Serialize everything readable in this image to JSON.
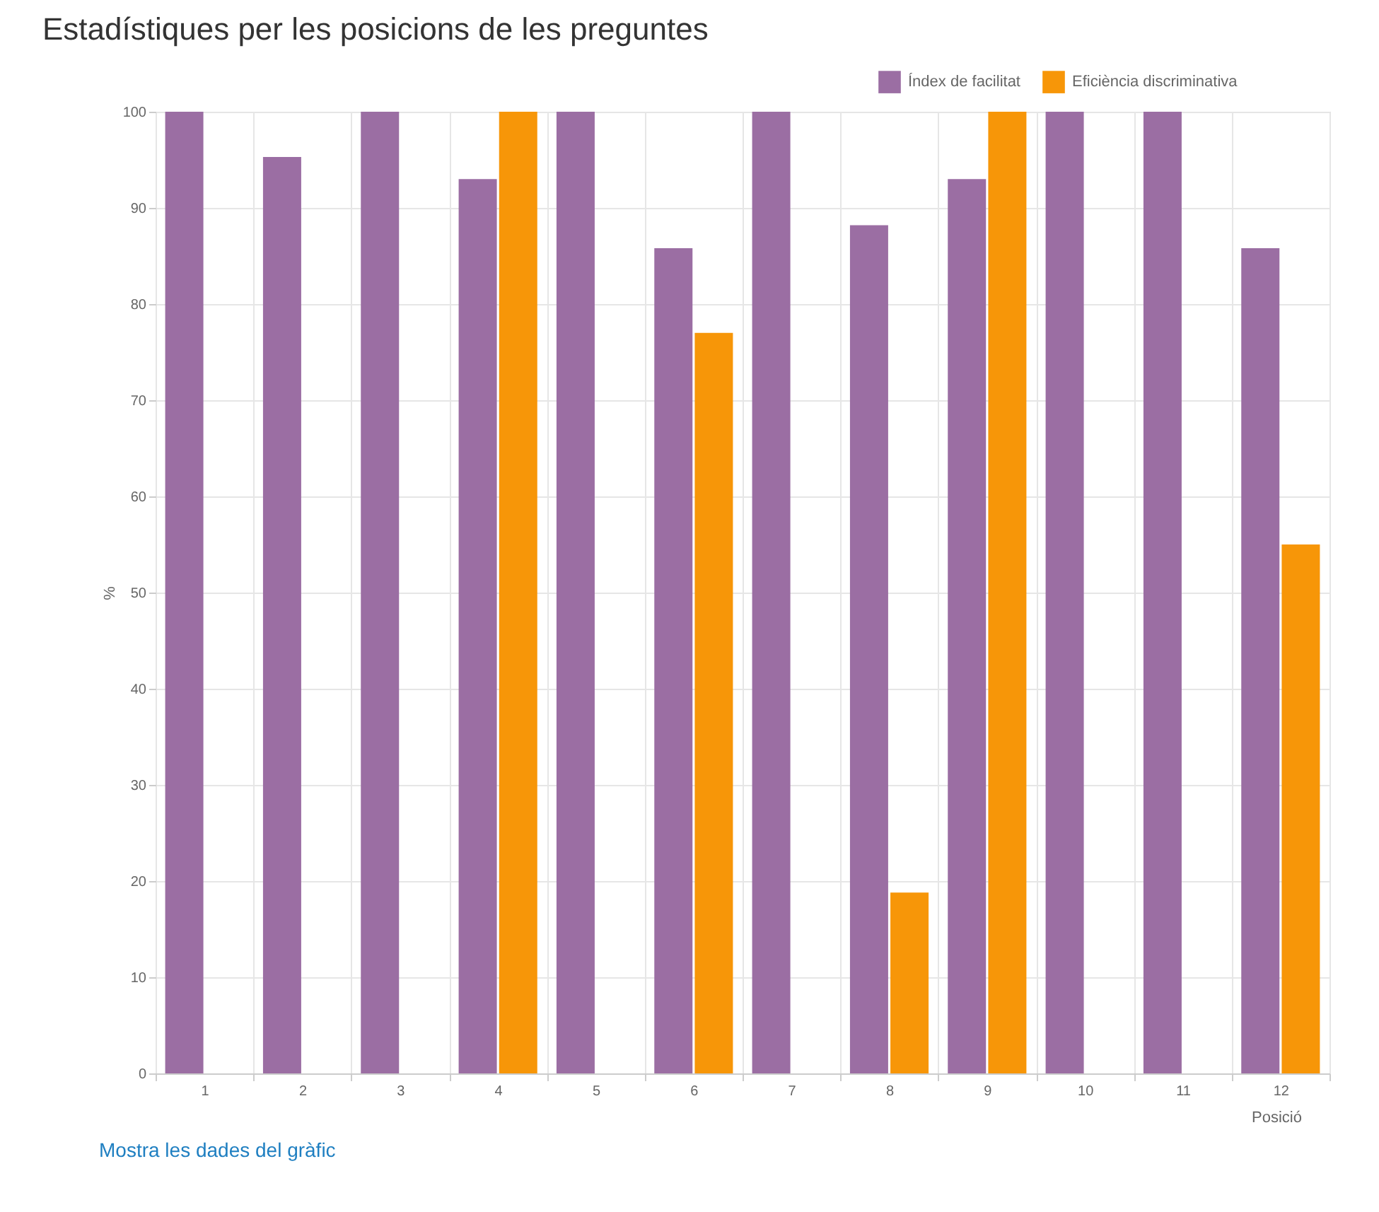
{
  "chart_data": {
    "type": "bar",
    "title": "Estadístiques per les posicions de les preguntes",
    "xlabel": "Posició",
    "ylabel": "%",
    "categories": [
      "1",
      "2",
      "3",
      "4",
      "5",
      "6",
      "7",
      "8",
      "9",
      "10",
      "11",
      "12"
    ],
    "series": [
      {
        "name": "Índex de facilitat",
        "color": "#9b6ea3",
        "values": [
          100,
          95.3,
          100,
          93,
          100,
          85.8,
          100,
          88.2,
          93,
          100,
          100,
          85.8
        ]
      },
      {
        "name": "Eficiència discriminativa",
        "color": "#f79608",
        "values": [
          null,
          null,
          null,
          100,
          null,
          77,
          null,
          18.8,
          100,
          null,
          null,
          55
        ]
      }
    ],
    "ylim": [
      0,
      100
    ],
    "yticks": [
      0,
      10,
      20,
      30,
      40,
      50,
      60,
      70,
      80,
      90,
      100
    ],
    "grid": true,
    "legend": "top right",
    "annotations": [
      "Mostra les dades del gràfic"
    ]
  }
}
